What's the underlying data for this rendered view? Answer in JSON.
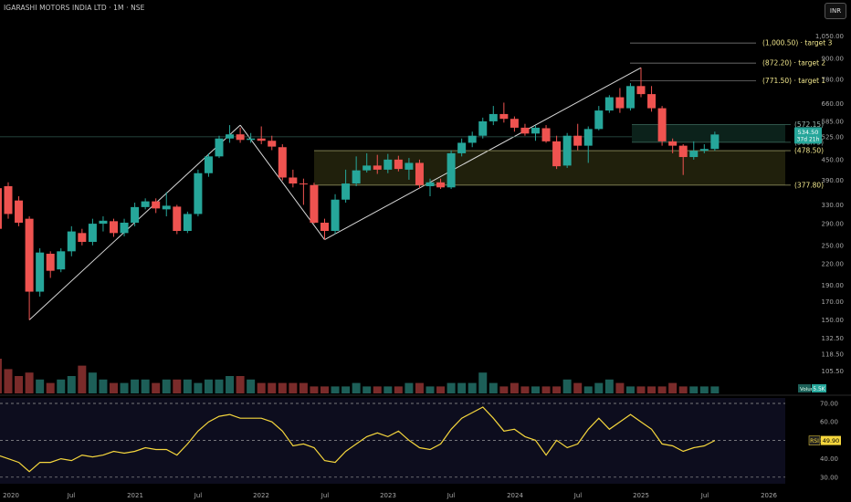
{
  "header": {
    "title": "IGARASHI MOTORS INDIA LTD · 1M · NSE",
    "currency": "INR"
  },
  "colors": {
    "background": "#000000",
    "up": "#26a69a",
    "down": "#ef5350",
    "annotation": "#f0e68c",
    "rsi_line": "#f5d63d",
    "rsi_panel": "#0d0d1e",
    "zone": "#2b2b10"
  },
  "chart_data": {
    "type": "candlestick",
    "symbol": "IGARASHI MOTORS INDIA LTD",
    "interval": "1M",
    "exchange": "NSE",
    "price_axis": {
      "scale": "log",
      "range": [
        98,
        1100
      ],
      "ticks": [
        "1,050.00",
        "900.00",
        "780.00",
        "660.00",
        "585.00",
        "525.00",
        "450.00",
        "390.00",
        "330.00",
        "290.00",
        "250.00",
        "220.00",
        "190.00",
        "170.00",
        "150.00",
        "132.50",
        "118.50",
        "105.50"
      ]
    },
    "time_axis": {
      "labels": [
        "2020",
        "Jul",
        "2021",
        "Jul",
        "2022",
        "Jul",
        "2023",
        "Jul",
        "2024",
        "Jul",
        "2025",
        "Jul",
        "2026"
      ]
    },
    "candles": [
      {
        "t": "2019-12",
        "o": 370,
        "h": 385,
        "l": 270,
        "c": 280
      },
      {
        "t": "2020-01",
        "o": 375,
        "h": 385,
        "l": 300,
        "c": 310
      },
      {
        "t": "2020-02",
        "o": 340,
        "h": 350,
        "l": 285,
        "c": 292
      },
      {
        "t": "2020-03",
        "o": 300,
        "h": 305,
        "l": 150,
        "c": 182
      },
      {
        "t": "2020-04",
        "o": 182,
        "h": 245,
        "l": 176,
        "c": 238
      },
      {
        "t": "2020-05",
        "o": 236,
        "h": 240,
        "l": 200,
        "c": 210
      },
      {
        "t": "2020-06",
        "o": 212,
        "h": 245,
        "l": 208,
        "c": 240
      },
      {
        "t": "2020-07",
        "o": 240,
        "h": 285,
        "l": 232,
        "c": 275
      },
      {
        "t": "2020-08",
        "o": 272,
        "h": 280,
        "l": 250,
        "c": 256
      },
      {
        "t": "2020-09",
        "o": 256,
        "h": 300,
        "l": 250,
        "c": 290
      },
      {
        "t": "2020-10",
        "o": 290,
        "h": 305,
        "l": 275,
        "c": 296
      },
      {
        "t": "2020-11",
        "o": 295,
        "h": 300,
        "l": 265,
        "c": 272
      },
      {
        "t": "2020-12",
        "o": 272,
        "h": 300,
        "l": 266,
        "c": 292
      },
      {
        "t": "2021-01",
        "o": 292,
        "h": 335,
        "l": 285,
        "c": 325
      },
      {
        "t": "2021-02",
        "o": 325,
        "h": 345,
        "l": 320,
        "c": 338
      },
      {
        "t": "2021-03",
        "o": 338,
        "h": 345,
        "l": 312,
        "c": 322
      },
      {
        "t": "2021-04",
        "o": 320,
        "h": 360,
        "l": 305,
        "c": 328
      },
      {
        "t": "2021-05",
        "o": 326,
        "h": 330,
        "l": 270,
        "c": 276
      },
      {
        "t": "2021-06",
        "o": 276,
        "h": 315,
        "l": 272,
        "c": 310
      },
      {
        "t": "2021-07",
        "o": 310,
        "h": 420,
        "l": 305,
        "c": 410
      },
      {
        "t": "2021-08",
        "o": 410,
        "h": 470,
        "l": 400,
        "c": 460
      },
      {
        "t": "2021-09",
        "o": 460,
        "h": 530,
        "l": 455,
        "c": 520
      },
      {
        "t": "2021-10",
        "o": 520,
        "h": 570,
        "l": 505,
        "c": 535
      },
      {
        "t": "2021-11",
        "o": 535,
        "h": 560,
        "l": 505,
        "c": 515
      },
      {
        "t": "2021-12",
        "o": 515,
        "h": 540,
        "l": 505,
        "c": 520
      },
      {
        "t": "2022-01",
        "o": 520,
        "h": 565,
        "l": 500,
        "c": 512
      },
      {
        "t": "2022-02",
        "o": 512,
        "h": 530,
        "l": 480,
        "c": 492
      },
      {
        "t": "2022-03",
        "o": 490,
        "h": 500,
        "l": 390,
        "c": 398
      },
      {
        "t": "2022-04",
        "o": 398,
        "h": 420,
        "l": 372,
        "c": 382
      },
      {
        "t": "2022-05",
        "o": 382,
        "h": 395,
        "l": 330,
        "c": 380
      },
      {
        "t": "2022-06",
        "o": 378,
        "h": 384,
        "l": 290,
        "c": 292
      },
      {
        "t": "2022-07",
        "o": 292,
        "h": 300,
        "l": 260,
        "c": 276
      },
      {
        "t": "2022-08",
        "o": 276,
        "h": 355,
        "l": 270,
        "c": 342
      },
      {
        "t": "2022-09",
        "o": 342,
        "h": 420,
        "l": 335,
        "c": 382
      },
      {
        "t": "2022-10",
        "o": 382,
        "h": 460,
        "l": 375,
        "c": 418
      },
      {
        "t": "2022-11",
        "o": 418,
        "h": 470,
        "l": 412,
        "c": 432
      },
      {
        "t": "2022-12",
        "o": 432,
        "h": 465,
        "l": 408,
        "c": 420
      },
      {
        "t": "2023-01",
        "o": 420,
        "h": 468,
        "l": 410,
        "c": 450
      },
      {
        "t": "2023-02",
        "o": 450,
        "h": 462,
        "l": 415,
        "c": 422
      },
      {
        "t": "2023-03",
        "o": 420,
        "h": 455,
        "l": 392,
        "c": 440
      },
      {
        "t": "2023-04",
        "o": 440,
        "h": 450,
        "l": 370,
        "c": 378
      },
      {
        "t": "2023-05",
        "o": 375,
        "h": 395,
        "l": 350,
        "c": 385
      },
      {
        "t": "2023-06",
        "o": 385,
        "h": 395,
        "l": 368,
        "c": 372
      },
      {
        "t": "2023-07",
        "o": 372,
        "h": 480,
        "l": 368,
        "c": 470
      },
      {
        "t": "2023-08",
        "o": 470,
        "h": 520,
        "l": 460,
        "c": 505
      },
      {
        "t": "2023-09",
        "o": 505,
        "h": 545,
        "l": 490,
        "c": 530
      },
      {
        "t": "2023-10",
        "o": 530,
        "h": 600,
        "l": 520,
        "c": 585
      },
      {
        "t": "2023-11",
        "o": 585,
        "h": 650,
        "l": 570,
        "c": 615
      },
      {
        "t": "2023-12",
        "o": 615,
        "h": 665,
        "l": 580,
        "c": 595
      },
      {
        "t": "2024-01",
        "o": 595,
        "h": 605,
        "l": 545,
        "c": 560
      },
      {
        "t": "2024-02",
        "o": 560,
        "h": 575,
        "l": 530,
        "c": 538
      },
      {
        "t": "2024-03",
        "o": 538,
        "h": 570,
        "l": 512,
        "c": 560
      },
      {
        "t": "2024-04",
        "o": 558,
        "h": 570,
        "l": 505,
        "c": 510
      },
      {
        "t": "2024-05",
        "o": 510,
        "h": 530,
        "l": 422,
        "c": 430
      },
      {
        "t": "2024-06",
        "o": 432,
        "h": 540,
        "l": 425,
        "c": 530
      },
      {
        "t": "2024-07",
        "o": 530,
        "h": 575,
        "l": 480,
        "c": 495
      },
      {
        "t": "2024-08",
        "o": 495,
        "h": 565,
        "l": 440,
        "c": 555
      },
      {
        "t": "2024-09",
        "o": 555,
        "h": 650,
        "l": 550,
        "c": 630
      },
      {
        "t": "2024-10",
        "o": 630,
        "h": 700,
        "l": 620,
        "c": 690
      },
      {
        "t": "2024-11",
        "o": 690,
        "h": 735,
        "l": 620,
        "c": 640
      },
      {
        "t": "2024-12",
        "o": 640,
        "h": 760,
        "l": 630,
        "c": 745
      },
      {
        "t": "2025-01",
        "o": 745,
        "h": 845,
        "l": 690,
        "c": 705
      },
      {
        "t": "2025-02",
        "o": 705,
        "h": 745,
        "l": 625,
        "c": 640
      },
      {
        "t": "2025-03",
        "o": 640,
        "h": 650,
        "l": 495,
        "c": 510
      },
      {
        "t": "2025-04",
        "o": 510,
        "h": 520,
        "l": 470,
        "c": 495
      },
      {
        "t": "2025-05",
        "o": 495,
        "h": 500,
        "l": 405,
        "c": 458
      },
      {
        "t": "2025-06",
        "o": 458,
        "h": 510,
        "l": 450,
        "c": 478
      },
      {
        "t": "2025-07",
        "o": 478,
        "h": 500,
        "l": 470,
        "c": 484
      },
      {
        "t": "2025-08",
        "o": 484,
        "h": 545,
        "l": 478,
        "c": 534.5
      }
    ],
    "volume": {
      "label": "Volume",
      "value_label": "5.5K",
      "values": [
        10,
        7,
        5,
        6,
        4,
        3,
        4,
        5,
        8,
        6,
        4,
        3,
        3,
        4,
        4,
        3,
        4,
        4,
        4,
        3,
        4,
        4,
        5,
        5,
        4,
        3,
        3,
        3,
        3,
        3,
        2,
        2,
        2,
        2,
        3,
        2,
        2,
        2,
        2,
        3,
        3,
        2,
        2,
        3,
        3,
        3,
        6,
        3,
        2,
        3,
        2,
        2,
        2,
        2,
        4,
        3,
        2,
        3,
        4,
        3,
        2,
        2,
        2,
        2,
        3,
        2,
        2,
        2,
        2
      ]
    },
    "rsi": {
      "label": "RSI",
      "current": "49.90",
      "ticks": [
        "70.00",
        "60.00",
        "50.00",
        "40.00",
        "30.00"
      ],
      "levels": [
        70,
        50,
        30
      ],
      "values": [
        42,
        40,
        38,
        33,
        38,
        38,
        40,
        39,
        42,
        41,
        42,
        44,
        43,
        44,
        46,
        45,
        45,
        42,
        48,
        55,
        60,
        63,
        64,
        62,
        62,
        62,
        60,
        55,
        47,
        48,
        46,
        39,
        38,
        44,
        48,
        52,
        54,
        52,
        55,
        50,
        46,
        45,
        48,
        56,
        62,
        65,
        68,
        62,
        55,
        56,
        52,
        50,
        42,
        50,
        46,
        48,
        56,
        62,
        56,
        60,
        64,
        60,
        56,
        48,
        47,
        44,
        46,
        47,
        49.9
      ]
    },
    "annotations": {
      "targets": [
        {
          "label": "(1,000.50) · target 3",
          "value": 1000.5
        },
        {
          "label": "(872.20) · target 2",
          "value": 872.2
        },
        {
          "label": "(771.50) · target 1",
          "value": 771.5
        }
      ],
      "levels": [
        {
          "label": "(572.15)",
          "value": 572.15
        },
        {
          "label": "(506.75)",
          "value": 506.75
        },
        {
          "label": "(478.50)",
          "value": 478.5
        },
        {
          "label": "(377.80)",
          "value": 377.8
        }
      ],
      "current_price": "534.50",
      "countdown": "37d 21h",
      "trendlines": [
        {
          "from": [
            "2020-03",
            150
          ],
          "to": [
            "2021-11",
            570
          ]
        },
        {
          "from": [
            "2021-11",
            570
          ],
          "to": [
            "2022-07",
            260
          ]
        },
        {
          "from": [
            "2022-07",
            260
          ],
          "to": [
            "2025-01",
            845
          ]
        }
      ]
    }
  }
}
